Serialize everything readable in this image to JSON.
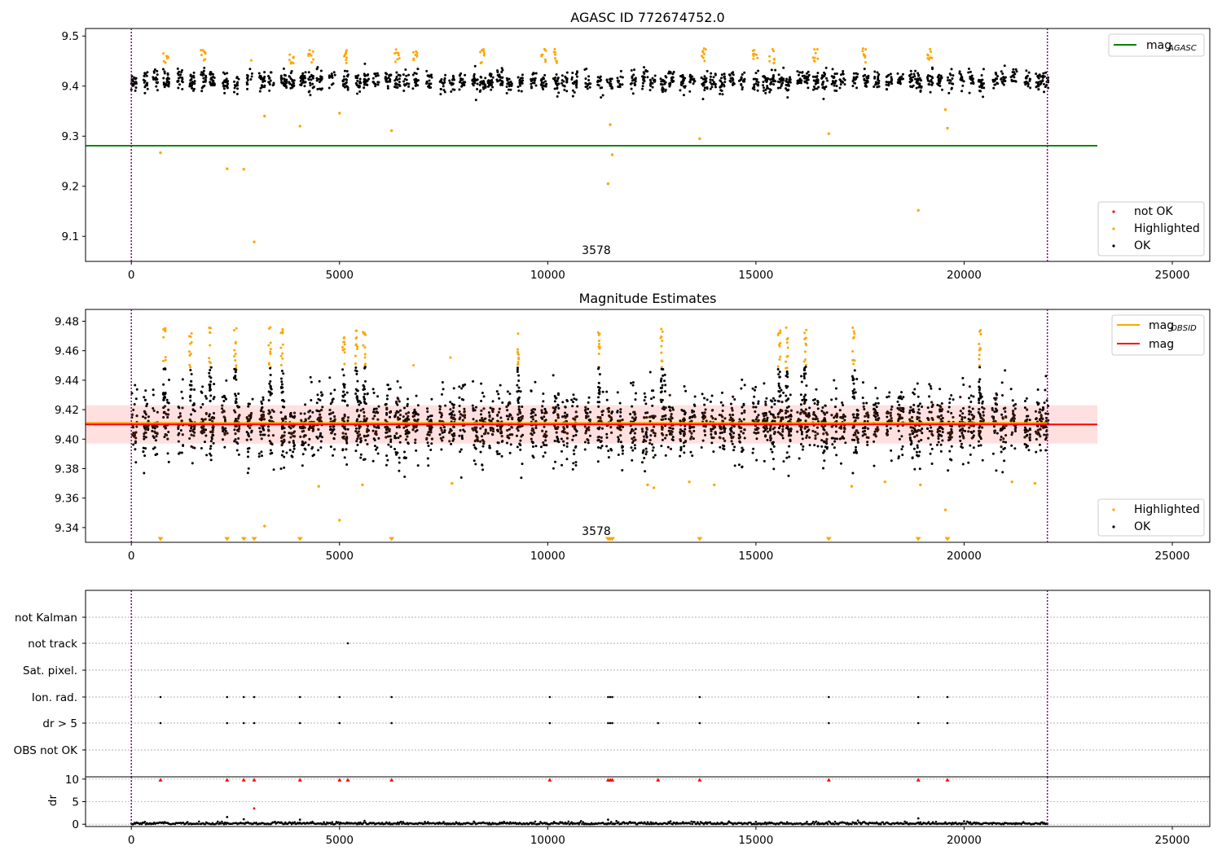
{
  "chart_data": [
    {
      "type": "scatter",
      "title": "AGASC ID 772674752.0",
      "xlim": [
        -1100,
        25900
      ],
      "ylim": [
        9.05,
        9.515
      ],
      "xticks": [
        0,
        5000,
        10000,
        15000,
        20000,
        25000
      ],
      "yticks": [
        9.1,
        9.2,
        9.3,
        9.4,
        9.5
      ],
      "ytick_labels": [
        "9.1",
        "9.2",
        "9.3",
        "9.4",
        "9.5"
      ],
      "vlines": [
        0,
        22000
      ],
      "hline_mag_agasc": 9.281,
      "annotation": "3578",
      "band": {
        "center": 9.41,
        "spread": 0.018
      },
      "highlighted_low_points": [
        [
          700,
          9.267
        ],
        [
          2300,
          9.235
        ],
        [
          2700,
          9.234
        ],
        [
          2950,
          9.089
        ],
        [
          3200,
          9.34
        ],
        [
          4050,
          9.32
        ],
        [
          5000,
          9.346
        ],
        [
          6250,
          9.311
        ],
        [
          11450,
          9.205
        ],
        [
          11500,
          9.323
        ],
        [
          11550,
          9.263
        ],
        [
          13650,
          9.295
        ],
        [
          16750,
          9.305
        ],
        [
          18900,
          9.152
        ],
        [
          19550,
          9.353
        ],
        [
          19600,
          9.316
        ]
      ],
      "legend_upper": [
        {
          "label": "mag",
          "sub": "AGASC",
          "color": "#008000"
        }
      ],
      "legend_lower": [
        {
          "label": "not OK",
          "color": "#ff0000"
        },
        {
          "label": "Highlighted",
          "color": "#ffa500"
        },
        {
          "label": "OK",
          "color": "#000000"
        }
      ]
    },
    {
      "type": "scatter",
      "title": "Magnitude Estimates",
      "xlim": [
        -1100,
        25900
      ],
      "ylim": [
        9.33,
        9.488
      ],
      "xticks": [
        0,
        5000,
        10000,
        15000,
        20000,
        25000
      ],
      "yticks": [
        9.34,
        9.36,
        9.38,
        9.4,
        9.42,
        9.44,
        9.46,
        9.48
      ],
      "ytick_labels": [
        "9.34",
        "9.36",
        "9.38",
        "9.40",
        "9.42",
        "9.44",
        "9.46",
        "9.48"
      ],
      "vlines": [
        0,
        22000
      ],
      "hline_mag": 9.41,
      "hline_mag_obsid": 9.411,
      "mag_band": [
        9.397,
        9.423
      ],
      "annotation": "3578",
      "band": {
        "center": 9.41,
        "spread": 0.014
      },
      "highlighted_low_points": [
        [
          3200,
          9.341
        ],
        [
          4500,
          9.368
        ],
        [
          5000,
          9.345
        ],
        [
          5550,
          9.369
        ],
        [
          7700,
          9.37
        ],
        [
          12400,
          9.369
        ],
        [
          12550,
          9.367
        ],
        [
          13400,
          9.371
        ],
        [
          14000,
          9.369
        ],
        [
          17300,
          9.368
        ],
        [
          18100,
          9.371
        ],
        [
          18950,
          9.369
        ],
        [
          19550,
          9.352
        ],
        [
          21150,
          9.371
        ],
        [
          21700,
          9.37
        ]
      ],
      "offscale_markers_x": [
        700,
        2300,
        2700,
        2950,
        4050,
        6250,
        11450,
        11500,
        11550,
        13650,
        16750,
        18900,
        19600
      ],
      "legend_upper": [
        {
          "label": "mag",
          "sub": "OBSID",
          "color": "#ffa500"
        },
        {
          "label": "mag",
          "sub": "",
          "color": "#ff0000"
        }
      ],
      "legend_lower": [
        {
          "label": "Highlighted",
          "color": "#ffa500"
        },
        {
          "label": "OK",
          "color": "#000000"
        }
      ]
    },
    {
      "type": "scatter",
      "title": "",
      "xlim": [
        -1100,
        25900
      ],
      "categories": [
        "not Kalman",
        "not track",
        "Sat. pixel.",
        "Ion. rad.",
        "dr > 5",
        "OBS not OK"
      ],
      "vlines": [
        0,
        22000
      ],
      "flags": {
        "not track": [
          5200
        ],
        "Ion. rad.": [
          700,
          2300,
          2700,
          2950,
          4050,
          5000,
          6250,
          10050,
          11450,
          11500,
          11550,
          13650,
          16750,
          18900,
          19600
        ],
        "dr > 5": [
          700,
          2300,
          2700,
          2950,
          4050,
          5000,
          6250,
          10050,
          11450,
          11500,
          11550,
          12650,
          13650,
          16750,
          18900,
          19600
        ]
      }
    },
    {
      "type": "scatter",
      "title": "",
      "ylabel": "dr",
      "xlim": [
        -1100,
        25900
      ],
      "ylim": [
        -0.5,
        10.5
      ],
      "xticks": [
        0,
        5000,
        10000,
        15000,
        20000,
        25000
      ],
      "yticks": [
        0,
        5,
        10
      ],
      "ytick_labels": [
        "0",
        "5",
        "10"
      ],
      "vlines": [
        0,
        22000
      ],
      "capped_markers_x": [
        700,
        2300,
        2700,
        2950,
        4050,
        5000,
        5200,
        6250,
        10050,
        11450,
        11500,
        11550,
        12650,
        13650,
        16750,
        18900,
        19600
      ],
      "extra_points": [
        [
          2950,
          3.5
        ],
        [
          2300,
          1.6
        ],
        [
          2700,
          1.1
        ],
        [
          4050,
          1.0
        ],
        [
          11450,
          1.0
        ],
        [
          18900,
          1.3
        ]
      ]
    }
  ],
  "xtick_labels": [
    "0",
    "5000",
    "10000",
    "15000",
    "20000",
    "25000"
  ],
  "colors": {
    "ok": "#000000",
    "highlighted": "#ffa500",
    "not_ok": "#ff0000",
    "agasc": "#008000",
    "vline": "#800080"
  }
}
